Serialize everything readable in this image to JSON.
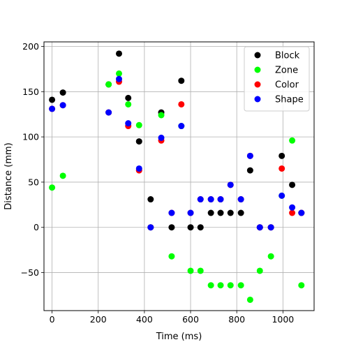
{
  "chart_data": {
    "type": "scatter",
    "xlabel": "Time (ms)",
    "ylabel": "Distance (mm)",
    "xlim": [
      -35,
      1135
    ],
    "ylim": [
      -92,
      205
    ],
    "xticks": [
      0,
      200,
      400,
      600,
      800,
      1000
    ],
    "yticks": [
      -50,
      0,
      50,
      100,
      150,
      200
    ],
    "grid": true,
    "legend_position": "top-right",
    "series": [
      {
        "name": "Block",
        "color": "#000000",
        "points": [
          [
            0,
            141
          ],
          [
            47,
            149
          ],
          [
            245,
            158
          ],
          [
            290,
            192
          ],
          [
            330,
            143
          ],
          [
            377,
            95
          ],
          [
            427,
            31
          ],
          [
            473,
            127
          ],
          [
            518,
            0
          ],
          [
            560,
            162
          ],
          [
            600,
            0
          ],
          [
            643,
            0
          ],
          [
            688,
            16
          ],
          [
            730,
            16
          ],
          [
            773,
            16
          ],
          [
            818,
            16
          ],
          [
            858,
            63
          ],
          [
            900,
            0
          ],
          [
            948,
            0
          ],
          [
            995,
            79
          ],
          [
            1040,
            47
          ],
          [
            1080,
            16
          ]
        ]
      },
      {
        "name": "Zone",
        "color": "#00ff00",
        "points": [
          [
            0,
            44
          ],
          [
            47,
            57
          ],
          [
            245,
            158
          ],
          [
            290,
            170
          ],
          [
            330,
            136
          ],
          [
            377,
            113
          ],
          [
            427,
            0
          ],
          [
            473,
            124
          ],
          [
            518,
            -32
          ],
          [
            560,
            112
          ],
          [
            600,
            -48
          ],
          [
            643,
            -48
          ],
          [
            688,
            -64
          ],
          [
            730,
            -64
          ],
          [
            773,
            -64
          ],
          [
            818,
            -64
          ],
          [
            858,
            -80
          ],
          [
            900,
            -48
          ],
          [
            948,
            -32
          ],
          [
            995,
            35
          ],
          [
            1040,
            96
          ],
          [
            1080,
            -64
          ]
        ]
      },
      {
        "name": "Color",
        "color": "#ff0000",
        "points": [
          [
            0,
            131
          ],
          [
            47,
            135
          ],
          [
            245,
            127
          ],
          [
            290,
            161
          ],
          [
            330,
            112
          ],
          [
            377,
            63
          ],
          [
            427,
            0
          ],
          [
            473,
            96
          ],
          [
            518,
            16
          ],
          [
            560,
            136
          ],
          [
            600,
            16
          ],
          [
            643,
            31
          ],
          [
            688,
            31
          ],
          [
            730,
            31
          ],
          [
            773,
            47
          ],
          [
            818,
            31
          ],
          [
            858,
            79
          ],
          [
            900,
            0
          ],
          [
            948,
            0
          ],
          [
            995,
            65
          ],
          [
            1040,
            16
          ],
          [
            1080,
            16
          ]
        ]
      },
      {
        "name": "Shape",
        "color": "#0000ff",
        "points": [
          [
            0,
            131
          ],
          [
            47,
            135
          ],
          [
            245,
            127
          ],
          [
            290,
            164
          ],
          [
            330,
            115
          ],
          [
            377,
            65
          ],
          [
            427,
            0
          ],
          [
            473,
            99
          ],
          [
            518,
            16
          ],
          [
            560,
            112
          ],
          [
            600,
            16
          ],
          [
            643,
            31
          ],
          [
            688,
            31
          ],
          [
            730,
            31
          ],
          [
            773,
            47
          ],
          [
            818,
            31
          ],
          [
            858,
            79
          ],
          [
            900,
            0
          ],
          [
            948,
            0
          ],
          [
            995,
            35
          ],
          [
            1040,
            22
          ],
          [
            1080,
            16
          ]
        ]
      }
    ]
  }
}
